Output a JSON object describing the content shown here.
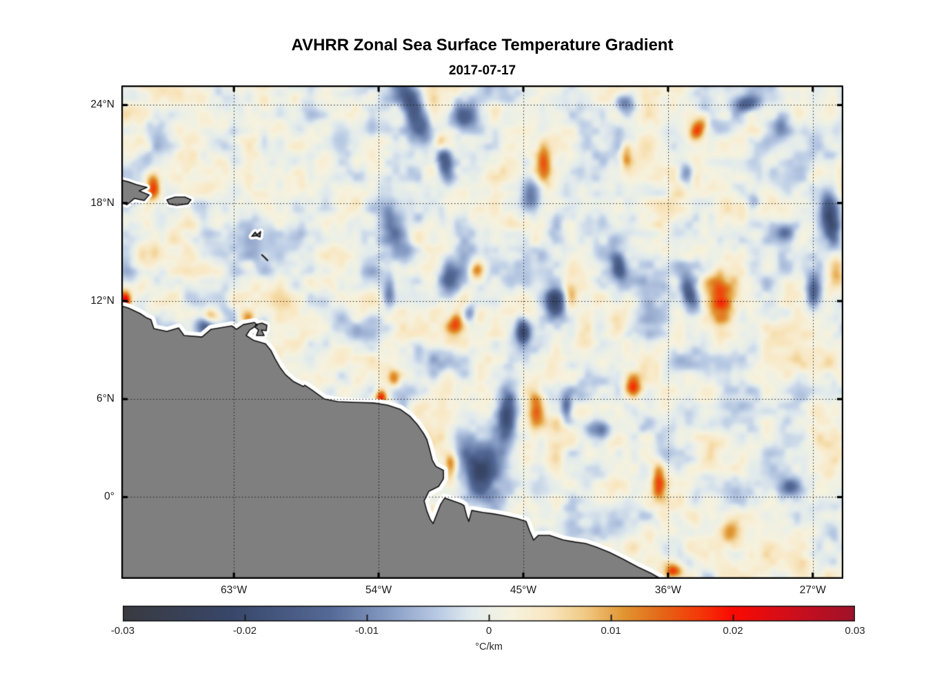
{
  "title": "AVHRR Zonal Sea Surface Temperature Gradient",
  "subtitle": "2017-07-17",
  "chart_data": {
    "type": "heatmap",
    "title": "AVHRR Zonal Sea Surface Temperature Gradient",
    "date": "2017-07-17",
    "grid": "dotted",
    "x_axis": {
      "range": [
        -70,
        -25.1
      ],
      "ticks": [
        {
          "value": -63,
          "label": "63°W"
        },
        {
          "value": -54,
          "label": "54°W"
        },
        {
          "value": -45,
          "label": "45°W"
        },
        {
          "value": -36,
          "label": "36°W"
        },
        {
          "value": -27,
          "label": "27°W"
        }
      ]
    },
    "y_axis": {
      "range": [
        -5,
        25.2
      ],
      "ticks": [
        {
          "value": 24,
          "label": "24°N"
        },
        {
          "value": 18,
          "label": "18°N"
        },
        {
          "value": 12,
          "label": "12°N"
        },
        {
          "value": 6,
          "label": "6°N"
        },
        {
          "value": 0,
          "label": "0°"
        }
      ]
    },
    "colorbar": {
      "range": [
        -0.03,
        0.03
      ],
      "label": "°C/km",
      "ticks": [
        {
          "value": -0.03,
          "label": "-0.03"
        },
        {
          "value": -0.02,
          "label": "-0.02"
        },
        {
          "value": -0.01,
          "label": "-0.01"
        },
        {
          "value": 0,
          "label": "0"
        },
        {
          "value": 0.01,
          "label": "0.01"
        },
        {
          "value": 0.02,
          "label": "0.02"
        },
        {
          "value": 0.03,
          "label": "0.03"
        }
      ],
      "colormap_stops": [
        {
          "v": -0.03,
          "c": "#393a40"
        },
        {
          "v": -0.021,
          "c": "#38476a"
        },
        {
          "v": -0.013,
          "c": "#546996"
        },
        {
          "v": -0.008,
          "c": "#899ec5"
        },
        {
          "v": -0.004,
          "c": "#bbcce5"
        },
        {
          "v": -0.0015,
          "c": "#e1eaed"
        },
        {
          "v": 0,
          "c": "#ecf0e7"
        },
        {
          "v": 0.002,
          "c": "#f7f2de"
        },
        {
          "v": 0.005,
          "c": "#f8e6bf"
        },
        {
          "v": 0.008,
          "c": "#f0c882"
        },
        {
          "v": 0.011,
          "c": "#e19632"
        },
        {
          "v": 0.014,
          "c": "#e46918"
        },
        {
          "v": 0.017,
          "c": "#f33c08"
        },
        {
          "v": 0.02,
          "c": "#fa0a02"
        },
        {
          "v": 0.025,
          "c": "#cd0e1c"
        },
        {
          "v": 0.03,
          "c": "#9e112a"
        }
      ]
    },
    "land": {
      "color": "#7f7f7f",
      "coast_gap_color": "#ffffff",
      "outline_color": "#111111",
      "mainland": [
        [
          -70,
          11.7
        ],
        [
          -69.57,
          11.58
        ],
        [
          -68.84,
          11.24
        ],
        [
          -68.46,
          10.99
        ],
        [
          -68.16,
          10.86
        ],
        [
          -67.98,
          10.31
        ],
        [
          -67.17,
          10.14
        ],
        [
          -66.44,
          10.35
        ],
        [
          -66.1,
          9.89
        ],
        [
          -64.98,
          9.8
        ],
        [
          -64.42,
          10.27
        ],
        [
          -63.14,
          10.48
        ],
        [
          -62.84,
          10.27
        ],
        [
          -62.41,
          10.56
        ],
        [
          -61.72,
          10.69
        ],
        [
          -61.55,
          10.52
        ],
        [
          -62.02,
          10.23
        ],
        [
          -62.24,
          9.89
        ],
        [
          -61.77,
          9.59
        ],
        [
          -61.04,
          9.38
        ],
        [
          -60.69,
          8.96
        ],
        [
          -60.44,
          8.46
        ],
        [
          -60.14,
          7.95
        ],
        [
          -59.79,
          7.49
        ],
        [
          -59.28,
          7.06
        ],
        [
          -58.68,
          6.77
        ],
        [
          -58.59,
          6.85
        ],
        [
          -58.16,
          6.56
        ],
        [
          -57.39,
          6.01
        ],
        [
          -56.53,
          5.84
        ],
        [
          -55.46,
          5.8
        ],
        [
          -54.3,
          5.76
        ],
        [
          -53.44,
          5.63
        ],
        [
          -52.67,
          5.38
        ],
        [
          -52.07,
          4.96
        ],
        [
          -51.6,
          4.45
        ],
        [
          -51.21,
          3.9
        ],
        [
          -51,
          3.52
        ],
        [
          -50.83,
          2.93
        ],
        [
          -50.66,
          2.26
        ],
        [
          -50.44,
          1.88
        ],
        [
          -49.97,
          1.63
        ],
        [
          -49.97,
          1.12
        ],
        [
          -50.27,
          0.65
        ],
        [
          -50.87,
          0.36
        ],
        [
          -51.17,
          -0.23
        ],
        [
          -51,
          -0.86
        ],
        [
          -50.79,
          -1.37
        ],
        [
          -50.61,
          -1.62
        ],
        [
          -50.36,
          -0.99
        ],
        [
          -50.14,
          -0.44
        ],
        [
          -49.89,
          -0.06
        ],
        [
          -49.5,
          -0.19
        ],
        [
          -48.9,
          -0.4
        ],
        [
          -48.69,
          -0.52
        ],
        [
          -48.51,
          -1.2
        ],
        [
          -48.39,
          -1.49
        ],
        [
          -48.21,
          -0.82
        ],
        [
          -47.53,
          -0.94
        ],
        [
          -46.84,
          -1.03
        ],
        [
          -46.16,
          -1.15
        ],
        [
          -45.38,
          -1.32
        ],
        [
          -44.83,
          -1.49
        ],
        [
          -44.61,
          -2.08
        ],
        [
          -44.36,
          -2.63
        ],
        [
          -44.06,
          -2.34
        ],
        [
          -43.37,
          -2.34
        ],
        [
          -42.51,
          -2.63
        ],
        [
          -41.74,
          -2.76
        ],
        [
          -41.14,
          -2.84
        ],
        [
          -40.49,
          -3.05
        ],
        [
          -39.64,
          -3.39
        ],
        [
          -38.78,
          -3.81
        ],
        [
          -37.88,
          -4.28
        ],
        [
          -37.06,
          -4.66
        ],
        [
          -36.46,
          -5
        ],
        [
          -36.1,
          -5.8
        ],
        [
          -70.6,
          -5.8
        ]
      ],
      "islands": [
        {
          "name": "hispaniola",
          "pts": [
            [
              -70.15,
              19.45
            ],
            [
              -69.57,
              19.3
            ],
            [
              -69.06,
              19.13
            ],
            [
              -68.41,
              18.96
            ],
            [
              -68.89,
              18.75
            ],
            [
              -68.28,
              18.49
            ],
            [
              -68.58,
              18.16
            ],
            [
              -69.19,
              18.28
            ],
            [
              -69.66,
              17.9
            ],
            [
              -70.15,
              18.1
            ]
          ]
        },
        {
          "name": "puerto-rico",
          "pts": [
            [
              -67.17,
              18.2
            ],
            [
              -66.65,
              18.37
            ],
            [
              -66.05,
              18.37
            ],
            [
              -65.67,
              18.2
            ],
            [
              -65.88,
              17.95
            ],
            [
              -66.57,
              17.86
            ],
            [
              -67.04,
              17.95
            ]
          ]
        },
        {
          "name": "trinidad",
          "pts": [
            [
              -61.64,
              10.56
            ],
            [
              -61.25,
              10.65
            ],
            [
              -60.95,
              10.52
            ],
            [
              -60.99,
              10.19
            ],
            [
              -61.29,
              10.23
            ],
            [
              -61.12,
              9.89
            ],
            [
              -61.6,
              9.89
            ],
            [
              -61.47,
              10.23
            ],
            [
              -61.68,
              10.4
            ]
          ]
        },
        {
          "name": "guadeloupe",
          "pts": [
            [
              -61.89,
              15.96
            ],
            [
              -61.68,
              16.22
            ],
            [
              -61.55,
              16.05
            ],
            [
              -61.34,
              16.26
            ],
            [
              -61.38,
              15.92
            ],
            [
              -61.6,
              16
            ]
          ]
        }
      ],
      "island_lines": [
        [
          [
            -61.25,
            14.82
          ],
          [
            -61.1,
            14.68
          ],
          [
            -60.91,
            14.49
          ]
        ]
      ]
    },
    "field": {
      "units": "°C/km",
      "seed": 7,
      "noise_octaves": [
        {
          "cell_deg": 1.9,
          "amp": 0.004
        },
        {
          "cell_deg": 0.95,
          "amp": 0.0034
        },
        {
          "cell_deg": 0.48,
          "amp": 0.0017
        }
      ],
      "anomaly_format": "[lon, lat, sigma_lon_deg, sigma_lat_deg, rot_deg, amplitude_degC_per_km]",
      "anomalies": [
        [
          -51.9,
          23.77,
          0.51,
          1.6,
          25,
          -0.02
        ],
        [
          -48.73,
          23.34,
          0.65,
          0.5,
          0,
          -0.013
        ],
        [
          -49.97,
          20.81,
          0.34,
          0.95,
          10,
          -0.016
        ],
        [
          -50.18,
          21.7,
          0.3,
          0.42,
          0,
          0.013
        ],
        [
          -43.66,
          20.39,
          0.38,
          1.0,
          0,
          0.013
        ],
        [
          -44.52,
          18.62,
          0.42,
          0.67,
          0,
          -0.012
        ],
        [
          -25.87,
          16.72,
          0.42,
          1.2,
          10,
          -0.019
        ],
        [
          -25.53,
          13.9,
          0.42,
          0.76,
          0,
          0.014
        ],
        [
          -32.86,
          12.21,
          0.69,
          1.2,
          0,
          0.019
        ],
        [
          -34.79,
          12.72,
          0.34,
          0.84,
          20,
          -0.012
        ],
        [
          -26.94,
          12.72,
          0.38,
          0.84,
          0,
          -0.015
        ],
        [
          -42.98,
          11.96,
          0.42,
          0.67,
          0,
          -0.02
        ],
        [
          -42.08,
          12.38,
          0.34,
          0.76,
          0,
          0.013
        ],
        [
          -39.08,
          14.19,
          0.34,
          0.84,
          10,
          -0.014
        ],
        [
          -64.47,
          11.07,
          0.51,
          0.34,
          0,
          0.016
        ],
        [
          -69.79,
          12.0,
          0.26,
          0.42,
          0,
          0.022
        ],
        [
          -64.81,
          10.61,
          0.42,
          0.5,
          0,
          -0.014
        ],
        [
          -62.11,
          10.99,
          0.38,
          0.38,
          0,
          0.014
        ],
        [
          -68.03,
          18.96,
          0.3,
          0.6,
          0,
          0.017
        ],
        [
          -53.83,
          6.14,
          0.26,
          0.34,
          0,
          0.018
        ],
        [
          -46.0,
          4.9,
          0.4,
          1.3,
          0,
          -0.019
        ],
        [
          -47.7,
          1.75,
          0.8,
          1.3,
          10,
          -0.017
        ],
        [
          -49.5,
          1.9,
          0.3,
          0.6,
          0,
          0.015
        ],
        [
          -40.32,
          4.11,
          0.51,
          0.42,
          0,
          -0.014
        ],
        [
          -28.4,
          0.65,
          0.6,
          0.42,
          0,
          -0.016
        ],
        [
          -32.0,
          -2.13,
          0.51,
          0.51,
          0,
          0.013
        ],
        [
          -35.69,
          -4.53,
          0.42,
          0.34,
          0,
          0.016
        ],
        [
          -52.89,
          16.3,
          0.5,
          1.2,
          25,
          -0.013
        ],
        [
          -47.87,
          13.9,
          0.34,
          0.42,
          0,
          0.013
        ],
        [
          -38.2,
          6.9,
          0.38,
          0.5,
          0,
          0.017
        ],
        [
          -45.04,
          10.1,
          0.3,
          0.6,
          0,
          -0.016
        ],
        [
          -34.1,
          22.5,
          0.35,
          0.7,
          -30,
          0.016
        ],
        [
          -34.87,
          19.8,
          0.34,
          0.5,
          0,
          -0.013
        ],
        [
          -31.14,
          24.1,
          0.6,
          0.34,
          0,
          -0.012
        ],
        [
          -28.66,
          16.22,
          0.42,
          0.42,
          0,
          -0.013
        ],
        [
          -38.74,
          24.02,
          0.42,
          0.42,
          0,
          -0.012
        ],
        [
          -38.61,
          20.9,
          0.26,
          0.5,
          0,
          0.012
        ],
        [
          -53.1,
          7.32,
          0.34,
          0.42,
          0,
          0.012
        ],
        [
          -44.2,
          5.55,
          0.35,
          0.9,
          0,
          0.013
        ],
        [
          -42.3,
          5.5,
          0.25,
          0.6,
          0,
          -0.012
        ],
        [
          -36.6,
          1.0,
          0.3,
          0.8,
          0,
          0.013
        ],
        [
          -68.54,
          14.82,
          0.6,
          0.6,
          0,
          0.009
        ],
        [
          -49.67,
          13.35,
          0.5,
          0.8,
          0,
          -0.013
        ],
        [
          -53.31,
          12.51,
          0.3,
          0.7,
          0,
          -0.01
        ],
        [
          -49.24,
          10.61,
          0.4,
          0.5,
          0,
          0.013
        ],
        [
          -48.38,
          11.24,
          0.3,
          0.4,
          0,
          -0.012
        ],
        [
          -28.95,
          22.6,
          0.5,
          0.5,
          0,
          -0.012
        ],
        [
          -30.7,
          18.1,
          0.35,
          0.45,
          0,
          -0.012
        ]
      ]
    }
  }
}
